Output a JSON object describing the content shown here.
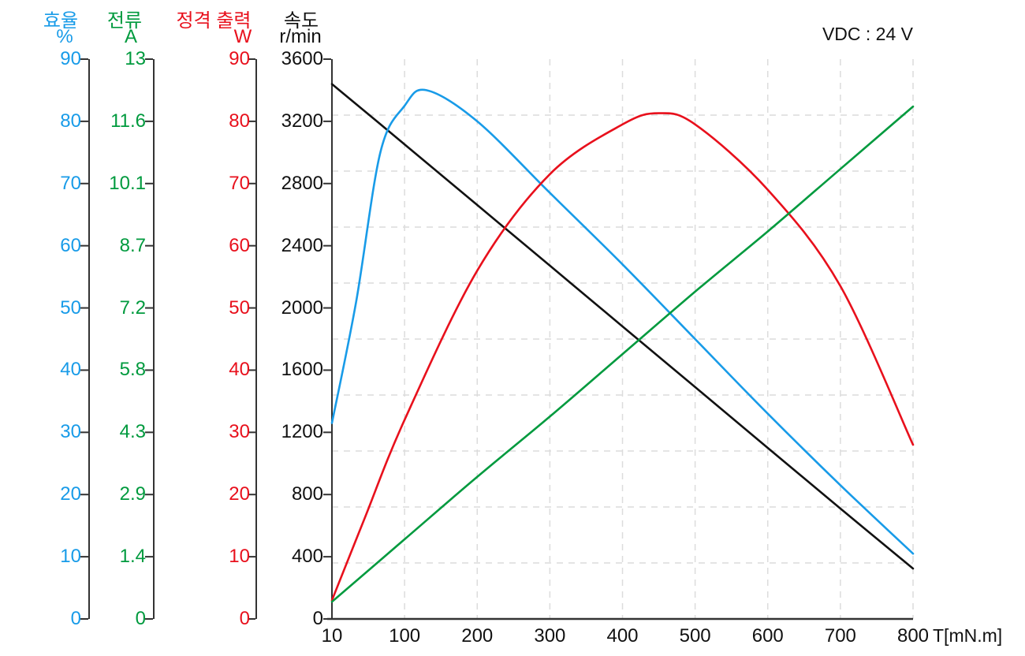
{
  "header": {
    "voltage_label": "VDC : 24 V"
  },
  "x_axis": {
    "label": "T[mN.m]",
    "tick_labels": [
      "10",
      "100",
      "200",
      "300",
      "400",
      "500",
      "600",
      "700",
      "800"
    ]
  },
  "axes": [
    {
      "id": "efficiency",
      "name": "효율",
      "unit": "%",
      "color": "#189BE8",
      "max": 90,
      "tick_labels": [
        "90",
        "80",
        "70",
        "60",
        "50",
        "40",
        "30",
        "20",
        "10",
        "0"
      ]
    },
    {
      "id": "current",
      "name": "전류",
      "unit": "A",
      "color": "#009A3E",
      "max": 13,
      "tick_labels": [
        "13",
        "11.6",
        "10.1",
        "8.7",
        "7.2",
        "5.8",
        "4.3",
        "2.9",
        "1.4",
        "0"
      ]
    },
    {
      "id": "power",
      "name": "정격 출력",
      "unit": "W",
      "color": "#E8101C",
      "max": 90,
      "tick_labels": [
        "90",
        "80",
        "70",
        "60",
        "50",
        "40",
        "30",
        "20",
        "10",
        "0"
      ]
    },
    {
      "id": "speed",
      "name": "속도",
      "unit": "r/min",
      "color": "#111111",
      "max": 3600,
      "tick_labels": [
        "3600",
        "3200",
        "2800",
        "2400",
        "2000",
        "1600",
        "1200",
        "800",
        "400",
        "0"
      ]
    }
  ],
  "chart_data": {
    "type": "line",
    "title": "VDC : 24 V",
    "xlabel": "T[mN.m]",
    "x_ticks": [
      10,
      100,
      200,
      300,
      400,
      500,
      600,
      700,
      800
    ],
    "x_axis_note": "tick marks equally spaced; first interval spans 10-100, the rest span 100 each",
    "grid": "dashed light-gray, vertical lines at each torque tick, 9 horizontal lines at equal tenths of plot height",
    "legend_position": "none (each curve matches the color of its own left-hand axis)",
    "series": [
      {
        "id": "speed",
        "name": "속도",
        "unit": "r/min",
        "color": "#111111",
        "axis_max": 3600,
        "x": [
          10,
          100,
          200,
          300,
          400,
          500,
          600,
          700,
          800
        ],
        "values": [
          3440,
          3052,
          2662,
          2272,
          1881,
          1491,
          1100,
          710,
          324
        ]
      },
      {
        "id": "efficiency",
        "name": "효율",
        "unit": "%",
        "color": "#189BE8",
        "axis_max": 90,
        "x": [
          10,
          40,
          70,
          100,
          130,
          200,
          300,
          400,
          500,
          600,
          700,
          800
        ],
        "values": [
          31.5,
          51,
          75,
          82.5,
          85,
          80,
          68.5,
          57,
          45,
          33,
          21.5,
          10.5
        ]
      },
      {
        "id": "power",
        "name": "정격 출력",
        "unit": "W",
        "color": "#E8101C",
        "axis_max": 90,
        "x": [
          10,
          50,
          100,
          200,
          300,
          400,
          450,
          500,
          600,
          700,
          800
        ],
        "values": [
          3,
          16,
          32,
          56,
          71.5,
          79.5,
          81.3,
          79.5,
          69,
          53.5,
          28
        ]
      },
      {
        "id": "current",
        "name": "전류",
        "unit": "A",
        "color": "#009A3E",
        "axis_max": 13,
        "x": [
          10,
          100,
          200,
          300,
          400,
          500,
          600,
          700,
          800
        ],
        "values": [
          0.4,
          1.85,
          3.3,
          4.7,
          6.15,
          7.6,
          9.0,
          10.45,
          11.9
        ]
      }
    ]
  }
}
